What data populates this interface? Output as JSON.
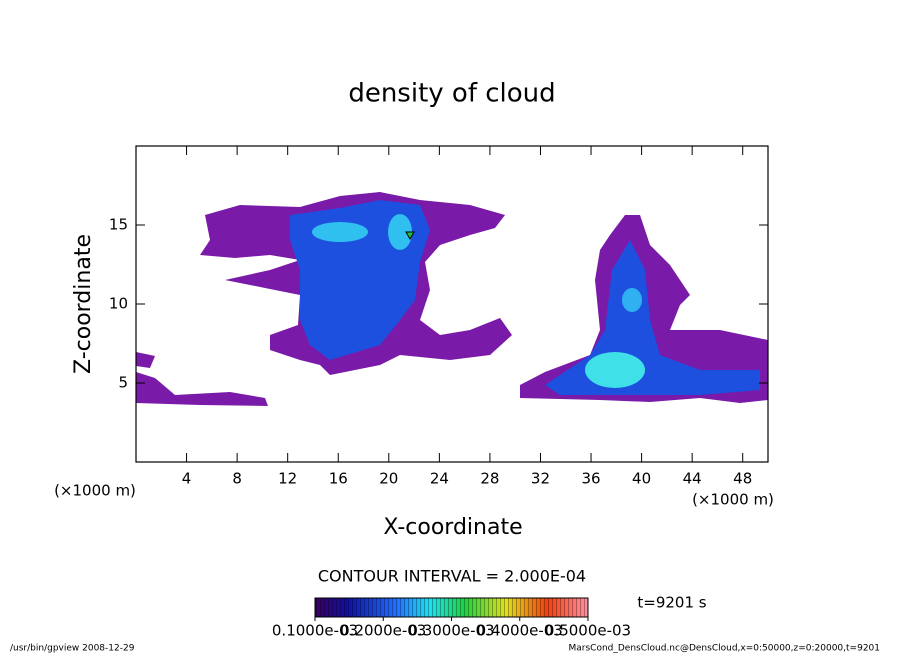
{
  "chart_data": {
    "type": "contour",
    "title": "density of cloud",
    "x_label": "X-coordinate",
    "y_label": "Z-coordinate",
    "unit_label": "(×1000 m)",
    "xlim": [
      0,
      50
    ],
    "xticks": [
      4,
      8,
      12,
      16,
      20,
      24,
      28,
      32,
      36,
      40,
      44,
      48
    ],
    "ylim": [
      0,
      20
    ],
    "yticks": [
      5,
      10,
      15
    ],
    "contour_note": "CONTOUR INTERVAL = 2.000E-04",
    "time_label": "t=9201 s",
    "colorbar": {
      "lim": [
        0.0001,
        0.0005
      ],
      "ticks": [
        {
          "value": 0.0001,
          "label": "0.1000e-03"
        },
        {
          "value": 0.0002,
          "label": "0.2000e-03"
        },
        {
          "value": 0.0003,
          "label": "0.3000e-03"
        },
        {
          "value": 0.0004,
          "label": "0.4000e-03"
        },
        {
          "value": 0.0005,
          "label": "0.5000e-03"
        }
      ]
    },
    "footer_left": "/usr/bin/gpview  2008-12-29",
    "footer_right": "MarsCond_DensCloud.nc@DensCloud,x=0:50000,z=0:20000,t=9201"
  }
}
